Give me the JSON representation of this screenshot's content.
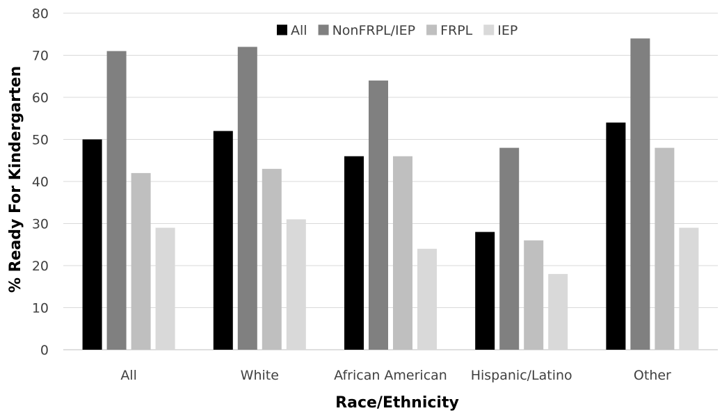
{
  "chart_data": {
    "type": "bar",
    "title": "",
    "xlabel": "Race/Ethnicity",
    "ylabel": "% Ready For Kindergarten",
    "ylim": [
      0,
      80
    ],
    "yticks": [
      0,
      10,
      20,
      30,
      40,
      50,
      60,
      70,
      80
    ],
    "grid": true,
    "legend_position": "top",
    "categories": [
      "All",
      "White",
      "African American",
      "Hispanic/Latino",
      "Other"
    ],
    "series": [
      {
        "name": "All",
        "color": "#000000",
        "values": [
          50,
          52,
          46,
          28,
          54
        ]
      },
      {
        "name": "NonFRPL/IEP",
        "color": "#808080",
        "values": [
          71,
          72,
          64,
          48,
          74
        ]
      },
      {
        "name": "FRPL",
        "color": "#bfbfbf",
        "values": [
          42,
          43,
          46,
          26,
          48
        ]
      },
      {
        "name": "IEP",
        "color": "#d9d9d9",
        "values": [
          29,
          31,
          24,
          18,
          29
        ]
      }
    ]
  }
}
